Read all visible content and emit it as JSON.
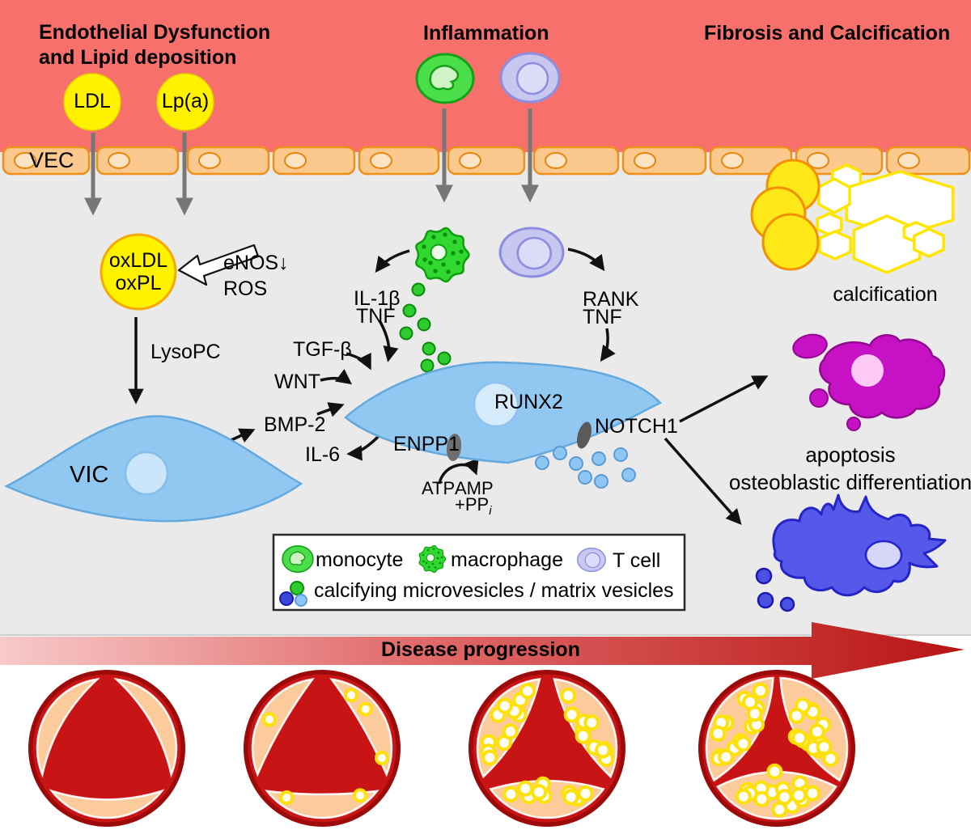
{
  "headers": {
    "endothelial_line1": "Endothelial Dysfunction",
    "endothelial_line2": "and Lipid deposition",
    "inflammation": "Inflammation",
    "fibrosis": "Fibrosis and Calcification"
  },
  "molecules": {
    "ldl": "LDL",
    "lpa": "Lp(a)",
    "vec": "VEC",
    "oxldl_line1": "oxLDL",
    "oxldl_line2": "oxPL",
    "enos": "eNOS↓",
    "ros": "ROS",
    "lysopc": "LysoPC",
    "vic": "VIC",
    "bmp2": "BMP-2",
    "il6": "IL-6",
    "il1b": "IL-1β",
    "tnf_left": "TNF",
    "tgfb": "TGF-β",
    "wnt": "WNT",
    "rank": "RANK",
    "tnf_right": "TNF",
    "runx2": "RUNX2",
    "notch1": "NOTCH1",
    "enpp1": "ENPP1",
    "atp": "ATP",
    "amp": "AMP",
    "pp": "+PP",
    "pp_sub": "i"
  },
  "annotations": {
    "calcification": "calcification",
    "apoptosis": "apoptosis",
    "osteoblastic_differentiation": "osteoblastic differentiation",
    "disease_progression": "Disease progression"
  },
  "legend": {
    "monocyte": "monocyte",
    "macrophage": "macrophage",
    "t_cell": "T cell",
    "vesicles": "calcifying microvesicles / matrix vesicles"
  },
  "colors": {
    "band_red": "#F7706C",
    "interstitium_gray": "#EAEAEA",
    "lipid_yellow": "#FFF100",
    "vec_peach": "#FBC88E",
    "vic_blue": "#90C8F2",
    "monocyte_green": "#4ADE4A",
    "macrophage_green": "#30D830",
    "tcell_lavender": "#C7C7F0",
    "apoptosis_magenta": "#C611C4",
    "osteoblast_blue": "#5558E8",
    "calcification_yellow": "#FFE818",
    "valve_red": "#C81414",
    "leaflet_peach": "#FBCB9B",
    "progression_dark_red": "#B81414"
  }
}
